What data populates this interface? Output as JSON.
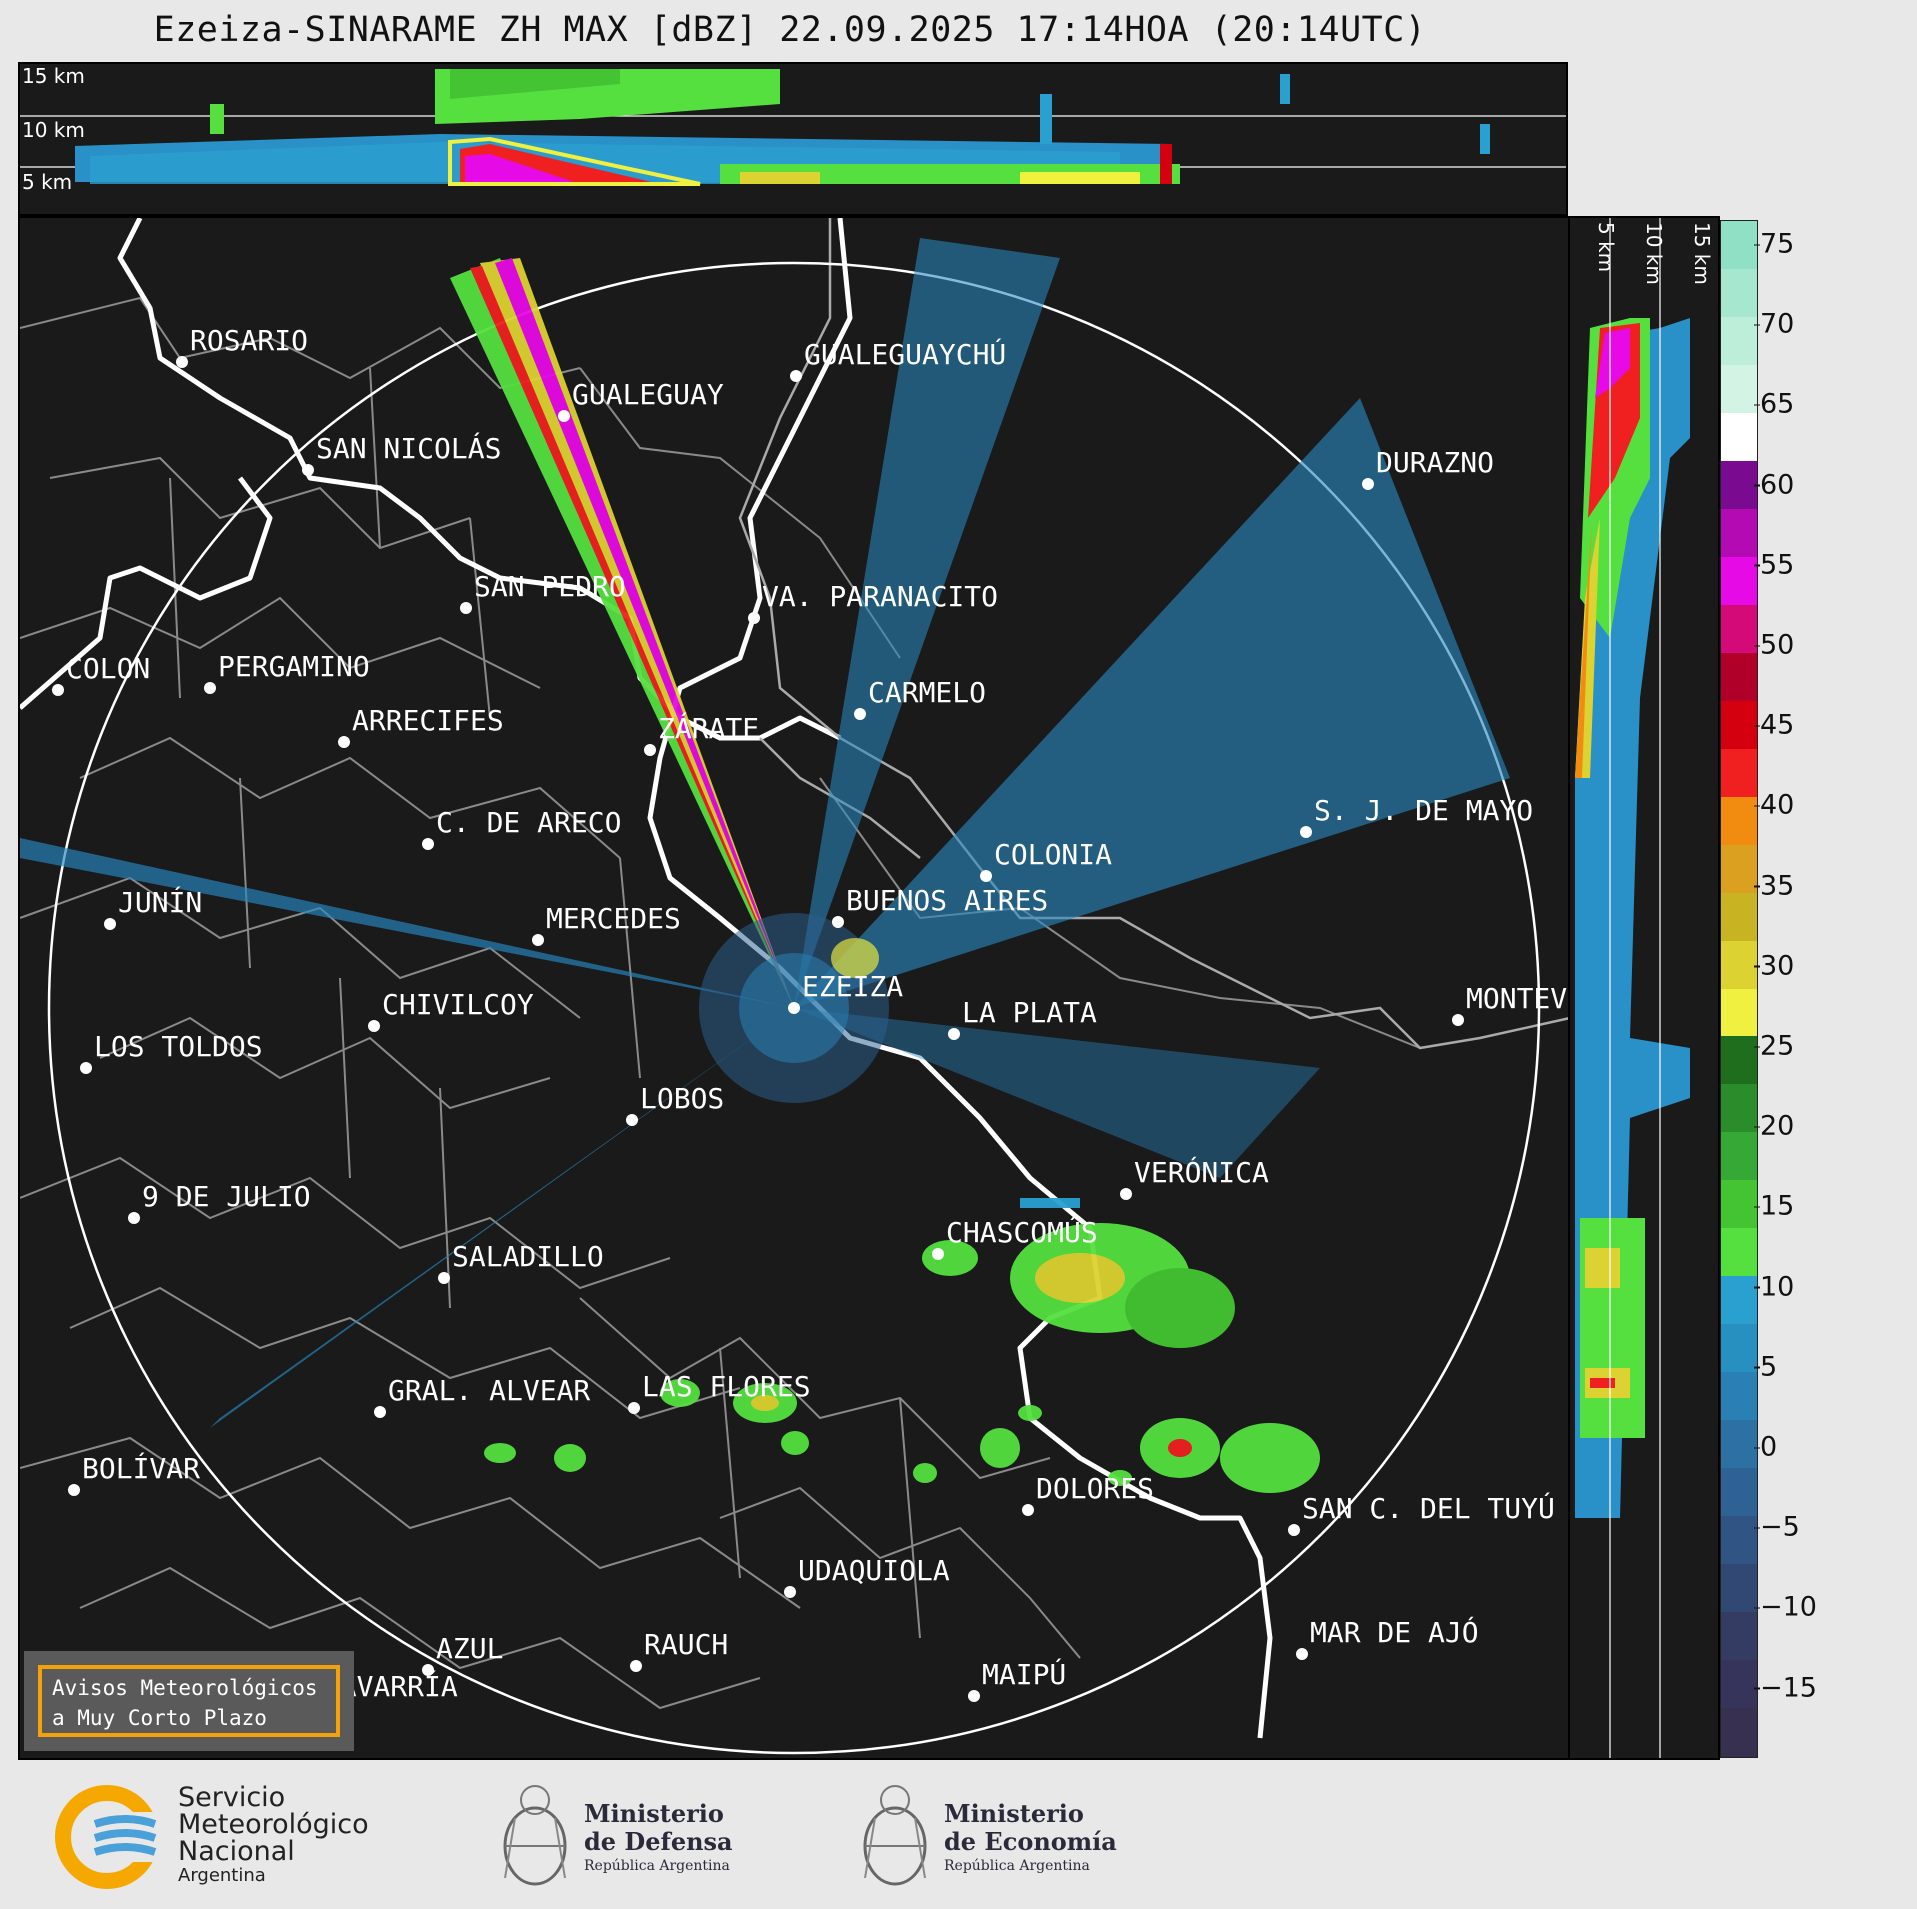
{
  "title": "Ezeiza-SINARAME ZH MAX [dBZ] 22.09.2025 17:14HOA (20:14UTC)",
  "height_levels_top": [
    "15 km",
    "10 km",
    "5 km"
  ],
  "height_levels_side": [
    "5 km",
    "10 km",
    "15 km"
  ],
  "colorbar": {
    "ticks": [
      "75",
      "70",
      "65",
      "60",
      "55",
      "50",
      "45",
      "40",
      "35",
      "30",
      "25",
      "20",
      "15",
      "10",
      "5",
      "0",
      "−5",
      "−10",
      "−15"
    ],
    "colors": [
      "#8fe0c4",
      "#a5e7cf",
      "#bdeed9",
      "#d3f3e5",
      "#ffffff",
      "#7a0a90",
      "#b40ab4",
      "#e60ae6",
      "#d40a78",
      "#b0002a",
      "#d40010",
      "#f02020",
      "#f28c10",
      "#dca020",
      "#c8b422",
      "#dcd232",
      "#f0f040",
      "#1e6e1e",
      "#2a8c2a",
      "#36a836",
      "#44c432",
      "#55e040",
      "#2aa0d0",
      "#2890c0",
      "#2a80b4",
      "#2c70a4",
      "#2e6294",
      "#305484",
      "#324874",
      "#343c64",
      "#36345a",
      "#383050"
    ]
  },
  "cities": [
    {
      "name": "ROSARIO"
    },
    {
      "name": "GUALEGUAYCHÚ"
    },
    {
      "name": "GUALEGUAY"
    },
    {
      "name": "SAN NICOLÁS"
    },
    {
      "name": "DURAZNO"
    },
    {
      "name": "SAN PEDRO"
    },
    {
      "name": "VA. PARANACITO"
    },
    {
      "name": "COLON"
    },
    {
      "name": "PERGAMINO"
    },
    {
      "name": "CARMELO"
    },
    {
      "name": "ARRECIFES"
    },
    {
      "name": "ZÁRATE"
    },
    {
      "name": "S. J. DE MAYO"
    },
    {
      "name": "C. DE ARECO"
    },
    {
      "name": "COLONIA"
    },
    {
      "name": "JUNÍN"
    },
    {
      "name": "BUENOS AIRES"
    },
    {
      "name": "MERCEDES"
    },
    {
      "name": "EZEIZA"
    },
    {
      "name": "MONTEV"
    },
    {
      "name": "CHIVILCOY"
    },
    {
      "name": "LA PLATA"
    },
    {
      "name": "LOS TOLDOS"
    },
    {
      "name": "LOBOS"
    },
    {
      "name": "VERÓNICA"
    },
    {
      "name": "9 DE JULIO"
    },
    {
      "name": "CHASCOMÚS"
    },
    {
      "name": "SALADILLO"
    },
    {
      "name": "GRAL. ALVEAR"
    },
    {
      "name": "LAS FLORES"
    },
    {
      "name": "BOLÍVAR"
    },
    {
      "name": "DOLORES"
    },
    {
      "name": "SAN C. DEL TUYÚ"
    },
    {
      "name": "UDAQUIOLA"
    },
    {
      "name": "MAR DE AJÓ"
    },
    {
      "name": "AZUL"
    },
    {
      "name": "RAUCH"
    },
    {
      "name": "MAIPÚ"
    },
    {
      "name": "OLAVARRÍA"
    }
  ],
  "notice": {
    "line1": "Avisos Meteorológicos",
    "line2": "a Muy Corto Plazo"
  },
  "logos": {
    "smn": {
      "l1": "Servicio",
      "l2": "Meteorológico",
      "l3": "Nacional",
      "l4": "Argentina"
    },
    "defensa": {
      "l1": "Ministerio",
      "l2": "de Defensa",
      "l3": "República Argentina"
    },
    "economia": {
      "l1": "Ministerio",
      "l2": "de Economía",
      "l3": "República Argentina"
    }
  }
}
